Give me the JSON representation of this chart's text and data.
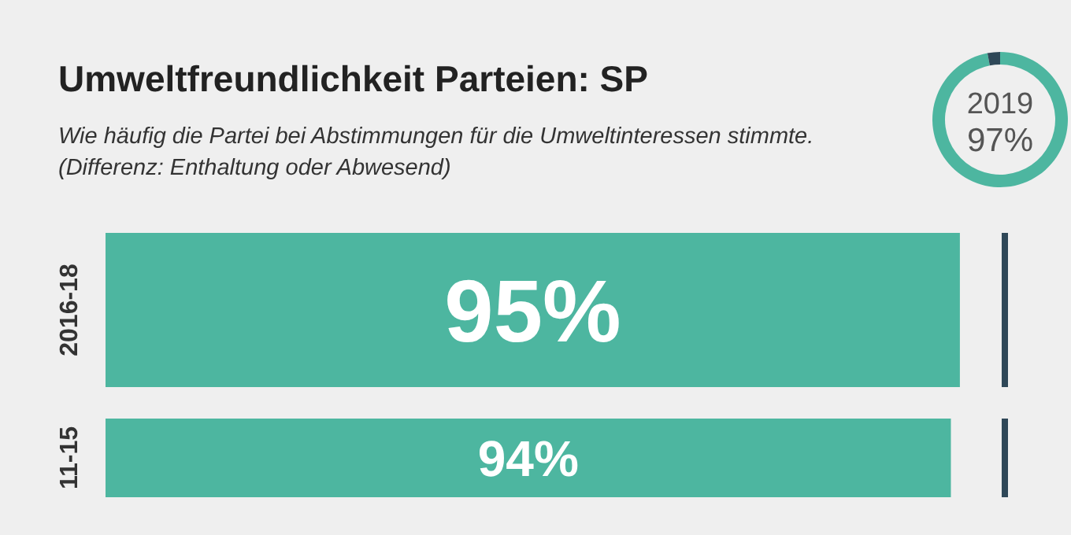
{
  "chart_data": [
    {
      "type": "bar",
      "title": "Umweltfreundlichkeit Parteien: SP",
      "subtitle": "Wie häufig die Partei bei Abstimmungen für die Umweltinteressen stimmte.\n(Differenz: Enthaltung oder Abwesend)",
      "orientation": "horizontal",
      "categories": [
        "2016-18",
        "11-15"
      ],
      "values": [
        95,
        94
      ],
      "value_labels": [
        "95%",
        "94%"
      ],
      "color": "#4db6a0",
      "tick_labels": "y",
      "ref_lines": [
        {
          "axis": "x",
          "value": 100,
          "color": "#2f4858"
        }
      ]
    },
    {
      "type": "donut",
      "title": "2019",
      "categories": [
        null,
        null
      ],
      "values": [
        97,
        3
      ],
      "colors": [
        "#4db6a0",
        "#2f4858"
      ],
      "value_labels": [
        "97%",
        null
      ]
    }
  ]
}
